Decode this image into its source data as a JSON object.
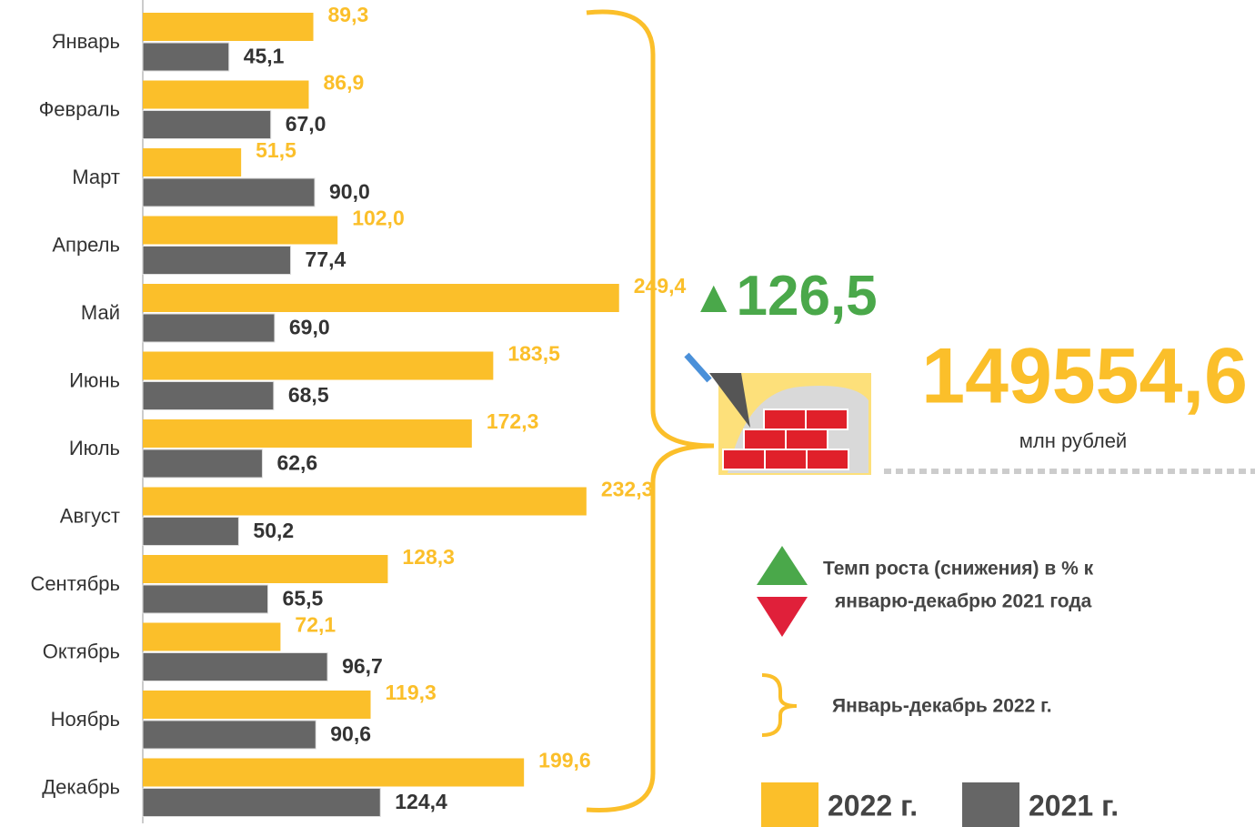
{
  "chart_data": {
    "type": "bar",
    "orientation": "horizontal",
    "categories": [
      "Январь",
      "Февраль",
      "Март",
      "Апрель",
      "Май",
      "Июнь",
      "Июль",
      "Август",
      "Сентябрь",
      "Октябрь",
      "Ноябрь",
      "Декабрь"
    ],
    "series": [
      {
        "name": "2022 г.",
        "color": "#fbbf2a",
        "values": [
          89.3,
          86.9,
          51.5,
          102.0,
          249.4,
          183.5,
          172.3,
          232.3,
          128.3,
          72.1,
          119.3,
          199.6
        ],
        "value_labels": [
          "89,3",
          "86,9",
          "51,5",
          "102,0",
          "249,4",
          "183,5",
          "172,3",
          "232,3",
          "128,3",
          "72,1",
          "119,3",
          "199,6"
        ]
      },
      {
        "name": "2021 г.",
        "color": "#666666",
        "values": [
          45.1,
          67.0,
          90.0,
          77.4,
          69.0,
          68.5,
          62.6,
          50.2,
          65.5,
          96.7,
          90.6,
          124.4
        ],
        "value_labels": [
          "45,1",
          "67,0",
          "90,0",
          "77,4",
          "69,0",
          "68,5",
          "62,6",
          "50,2",
          "65,5",
          "96,7",
          "90,6",
          "124,4"
        ]
      }
    ],
    "xlim": [
      0,
      250
    ],
    "summary": {
      "growth": "126,5",
      "total": "149554,6",
      "unit": "млн рублей"
    },
    "note": [
      "Темп роста (снижения) в % к",
      "январю-декабрю 2021 года"
    ],
    "period": "Январь-декабрь 2022 г."
  }
}
